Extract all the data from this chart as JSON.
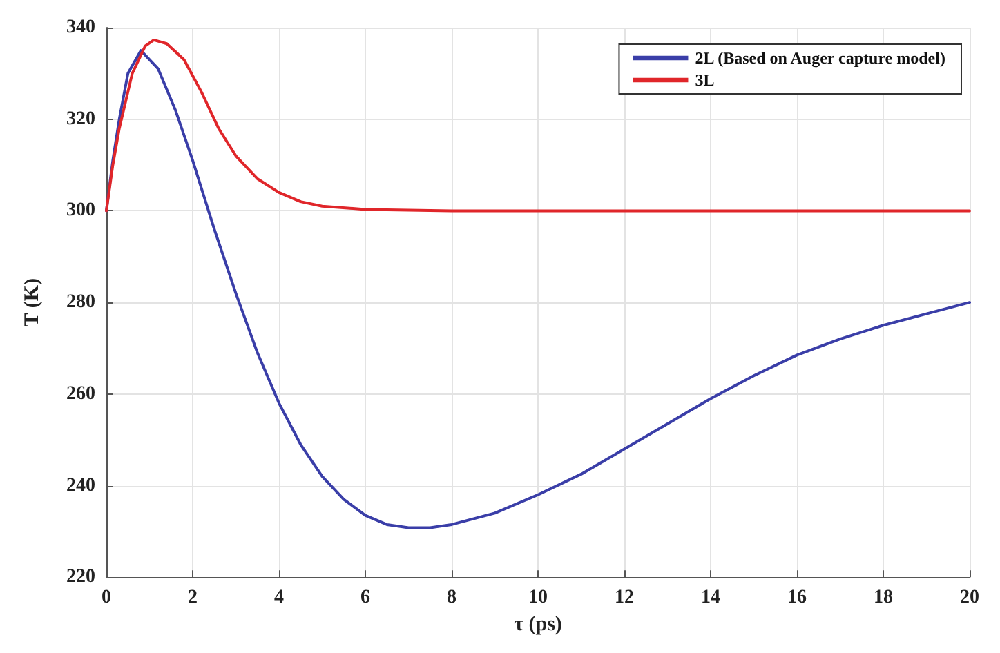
{
  "chart_data": {
    "type": "line",
    "xlabel": "τ (ps)",
    "ylabel": "T (K)",
    "xlim": [
      0,
      20
    ],
    "xticks": [
      0,
      2,
      4,
      6,
      8,
      10,
      12,
      14,
      16,
      18,
      20
    ],
    "ylim": [
      220,
      340
    ],
    "yticks": [
      220,
      240,
      260,
      280,
      300,
      320,
      340
    ],
    "grid": true,
    "legend": "top right",
    "marker": "none",
    "line_style": "solid",
    "series": [
      {
        "name": "2L (Based on Auger capture model)",
        "color": "#3a3ea8",
        "x": [
          0,
          0.15,
          0.3,
          0.5,
          0.8,
          1.2,
          1.6,
          2,
          2.5,
          3,
          3.5,
          4,
          4.5,
          5,
          5.5,
          6,
          6.5,
          7,
          7.5,
          8,
          9,
          10,
          11,
          12,
          13,
          14,
          15,
          16,
          17,
          18,
          19,
          20
        ],
        "values": [
          300,
          311,
          320,
          330,
          335,
          331,
          322,
          311,
          296,
          282,
          269,
          258,
          249,
          242,
          237,
          233.5,
          231.5,
          230.8,
          230.8,
          231.5,
          234,
          238,
          242.5,
          248,
          253.5,
          259,
          264,
          268.5,
          272,
          275,
          277.5,
          280
        ]
      },
      {
        "name": "3L",
        "color": "#e0262a",
        "x": [
          0,
          0.15,
          0.3,
          0.6,
          0.9,
          1.1,
          1.4,
          1.8,
          2.2,
          2.6,
          3,
          3.5,
          4,
          4.5,
          5,
          6,
          8,
          12,
          16,
          20
        ],
        "values": [
          300,
          310,
          318,
          330,
          336,
          337.3,
          336.5,
          333,
          326,
          318,
          312,
          307,
          304,
          302,
          301,
          300.3,
          300,
          300,
          300,
          300
        ]
      }
    ]
  }
}
